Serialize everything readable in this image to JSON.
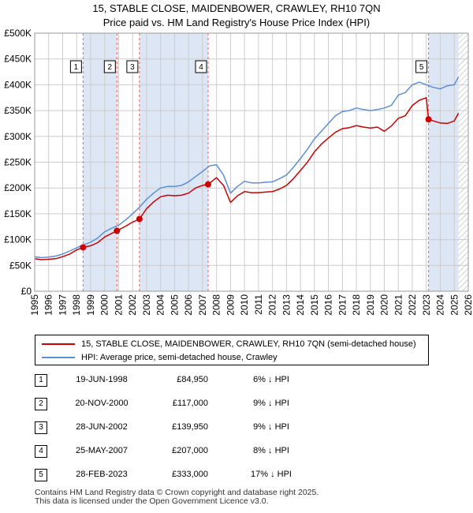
{
  "title_line1": "15, STABLE CLOSE, MAIDENBOWER, CRAWLEY, RH10 7QN",
  "title_line2": "Price paid vs. HM Land Registry's House Price Index (HPI)",
  "legend": {
    "property": "15, STABLE CLOSE, MAIDENBOWER, CRAWLEY, RH10 7QN (semi-detached house)",
    "hpi": "HPI: Average price, semi-detached house, Crawley"
  },
  "colors": {
    "property": "#cc0000",
    "hpi": "#5b8fd6",
    "shade": "#dde6f5",
    "grid": "#cccccc",
    "marker_line": "#e06666",
    "hatch": "#b0b8c8"
  },
  "sales": [
    {
      "num": "1",
      "date": "19-JUN-1998",
      "price": "£84,950",
      "hpi": "6% ↓ HPI"
    },
    {
      "num": "2",
      "date": "20-NOV-2000",
      "price": "£117,000",
      "hpi": "9% ↓ HPI"
    },
    {
      "num": "3",
      "date": "28-JUN-2002",
      "price": "£139,950",
      "hpi": "9% ↓ HPI"
    },
    {
      "num": "4",
      "date": "25-MAY-2007",
      "price": "£207,000",
      "hpi": "8% ↓ HPI"
    },
    {
      "num": "5",
      "date": "28-FEB-2023",
      "price": "£333,000",
      "hpi": "17% ↓ HPI"
    }
  ],
  "footer_line1": "Contains HM Land Registry data © Crown copyright and database right 2025.",
  "footer_line2": "This data is licensed under the Open Government Licence v3.0.",
  "chart_data": {
    "type": "line",
    "xlim": [
      1995,
      2026
    ],
    "ylim": [
      0,
      500000
    ],
    "y_ticks": [
      0,
      50000,
      100000,
      150000,
      200000,
      250000,
      300000,
      350000,
      400000,
      450000,
      500000
    ],
    "y_tick_labels": [
      "£0",
      "£50K",
      "£100K",
      "£150K",
      "£200K",
      "£250K",
      "£300K",
      "£350K",
      "£400K",
      "£450K",
      "£500K"
    ],
    "x_ticks": [
      1995,
      1996,
      1997,
      1998,
      1999,
      2000,
      2001,
      2002,
      2003,
      2004,
      2005,
      2006,
      2007,
      2008,
      2009,
      2010,
      2011,
      2012,
      2013,
      2014,
      2015,
      2016,
      2017,
      2018,
      2019,
      2020,
      2021,
      2022,
      2023,
      2024,
      2025,
      2026
    ],
    "x_tick_labels": [
      "1995",
      "1996",
      "1997",
      "1998",
      "1999",
      "2000",
      "2001",
      "2002",
      "2003",
      "2004",
      "2005",
      "2006",
      "2007",
      "2008",
      "2009",
      "2010",
      "2011",
      "2012",
      "2013",
      "2014",
      "2015",
      "2016",
      "2017",
      "2018",
      "2019",
      "2020",
      "2021",
      "2022",
      "2023",
      "2024",
      "2025",
      "2026"
    ],
    "grid": true,
    "shaded_spans": [
      [
        1998.46,
        2000.88
      ],
      [
        2002.49,
        2007.4
      ],
      [
        2023.16,
        2025.3
      ]
    ],
    "future_hatch_start": 2025.3,
    "markers": [
      {
        "label": "1",
        "x": 1998.46,
        "y": 84950
      },
      {
        "label": "2",
        "x": 2000.88,
        "y": 117000
      },
      {
        "label": "3",
        "x": 2002.49,
        "y": 139950
      },
      {
        "label": "4",
        "x": 2007.4,
        "y": 207000
      },
      {
        "label": "5",
        "x": 2023.16,
        "y": 333000
      }
    ],
    "series": [
      {
        "name": "HPI: Average price, semi-detached house, Crawley",
        "x": [
          1995,
          1995.5,
          1996,
          1996.5,
          1997,
          1997.5,
          1998,
          1998.5,
          1999,
          1999.5,
          2000,
          2000.5,
          2001,
          2001.5,
          2002,
          2002.5,
          2003,
          2003.5,
          2004,
          2004.5,
          2005,
          2005.5,
          2006,
          2006.5,
          2007,
          2007.5,
          2008,
          2008.5,
          2009,
          2009.5,
          2010,
          2010.5,
          2011,
          2011.5,
          2012,
          2012.5,
          2013,
          2013.5,
          2014,
          2014.5,
          2015,
          2015.5,
          2016,
          2016.5,
          2017,
          2017.5,
          2018,
          2018.5,
          2019,
          2019.5,
          2020,
          2020.5,
          2021,
          2021.5,
          2022,
          2022.5,
          2023,
          2023.5,
          2024,
          2024.5,
          2025,
          2025.3
        ],
        "values": [
          67000,
          65000,
          66000,
          68000,
          72000,
          78000,
          84000,
          90000,
          95000,
          103000,
          115000,
          122000,
          128000,
          138000,
          150000,
          163000,
          178000,
          190000,
          200000,
          203000,
          203000,
          205000,
          212000,
          222000,
          232000,
          243000,
          245000,
          225000,
          190000,
          203000,
          213000,
          210000,
          210000,
          211000,
          212000,
          218000,
          225000,
          240000,
          257000,
          275000,
          295000,
          310000,
          325000,
          340000,
          348000,
          350000,
          355000,
          352000,
          350000,
          352000,
          355000,
          360000,
          380000,
          385000,
          400000,
          405000,
          400000,
          395000,
          392000,
          398000,
          400000,
          415000
        ]
      },
      {
        "name": "15, STABLE CLOSE, MAIDENBOWER, CRAWLEY, RH10 7QN (semi-detached house)",
        "x": [
          1995,
          1995.5,
          1996,
          1996.5,
          1997,
          1997.5,
          1998,
          1998.46,
          1999,
          1999.5,
          2000,
          2000.5,
          2000.88,
          2001.5,
          2002,
          2002.49,
          2003,
          2003.5,
          2004,
          2004.5,
          2005,
          2005.5,
          2006,
          2006.5,
          2007,
          2007.4,
          2008,
          2008.5,
          2009,
          2009.5,
          2010,
          2010.5,
          2011,
          2011.5,
          2012,
          2012.5,
          2013,
          2013.5,
          2014,
          2014.5,
          2015,
          2015.5,
          2016,
          2016.5,
          2017,
          2017.5,
          2018,
          2018.5,
          2019,
          2019.5,
          2020,
          2020.5,
          2021,
          2021.5,
          2022,
          2022.5,
          2023,
          2023.16,
          2023.5,
          2024,
          2024.5,
          2025,
          2025.3
        ],
        "values": [
          63000,
          61000,
          62000,
          63000,
          67000,
          72000,
          80000,
          84950,
          88000,
          94000,
          105000,
          112000,
          117000,
          126000,
          134000,
          139950,
          160000,
          173000,
          183000,
          186000,
          185000,
          186000,
          190000,
          200000,
          205000,
          207000,
          220000,
          205000,
          172000,
          185000,
          193000,
          191000,
          191000,
          192000,
          193000,
          198000,
          205000,
          218000,
          234000,
          250000,
          270000,
          285000,
          297000,
          308000,
          315000,
          317000,
          321000,
          318000,
          316000,
          318000,
          310000,
          320000,
          335000,
          340000,
          360000,
          370000,
          375000,
          333000,
          330000,
          326000,
          325000,
          330000,
          345000
        ]
      }
    ]
  }
}
